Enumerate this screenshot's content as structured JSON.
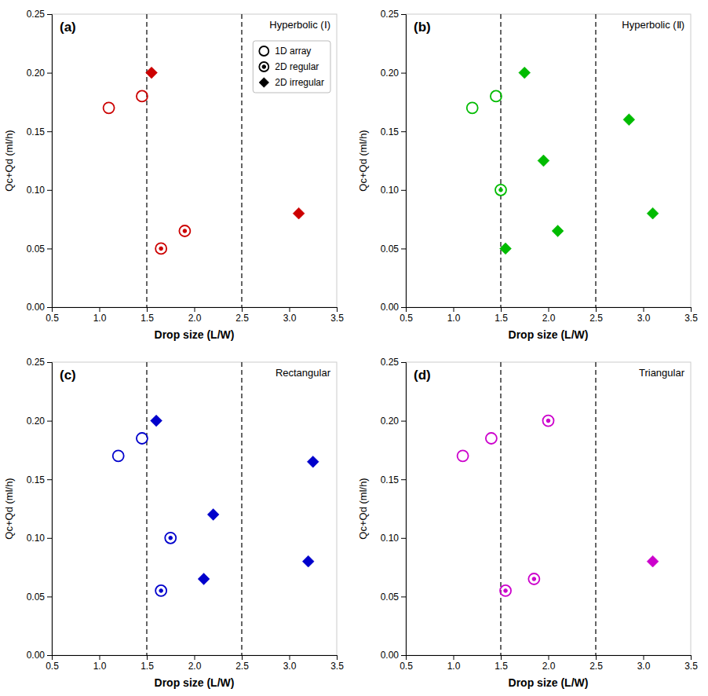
{
  "chart_data": [
    {
      "type": "scatter",
      "title": "Hyperbolic (Ⅰ)",
      "annotations": [
        "(a)"
      ],
      "xlabel": "Drop size (L/W)",
      "ylabel": "Qc+Qd (ml/h)",
      "xlim": [
        0.5,
        3.5
      ],
      "ylim": [
        0.0,
        0.25
      ],
      "xticks": [
        0.5,
        {
          "value": 1.0,
          "label": "1.0"
        },
        1.5,
        {
          "value": 2.0,
          "label": "2.0"
        },
        2.5,
        {
          "value": 3.0,
          "label": "3.0"
        },
        3.5
      ],
      "yticks": [
        {
          "value": 0.0,
          "label": "0.00"
        },
        0.05,
        {
          "value": 0.1,
          "label": "0.10"
        },
        0.15,
        {
          "value": 0.2,
          "label": "0.20"
        },
        0.25
      ],
      "grid": false,
      "legend": "upper right",
      "vlines": [
        1.5,
        2.5
      ],
      "series": [
        {
          "name": "1D array",
          "color": "#cc0000",
          "marker": "circle",
          "x": [
            1.1,
            1.45
          ],
          "values": [
            0.17,
            0.18
          ]
        },
        {
          "name": "2D regular",
          "color": "#cc0000",
          "marker": "circle-dot",
          "x": [
            1.65,
            1.9
          ],
          "values": [
            0.05,
            0.065
          ]
        },
        {
          "name": "2D irregular",
          "color": "#cc0000",
          "marker": "diamond",
          "x": [
            1.55,
            3.1
          ],
          "values": [
            0.2,
            0.08
          ]
        }
      ]
    },
    {
      "type": "scatter",
      "title": "Hyperbolic (Ⅱ)",
      "annotations": [
        "(b)"
      ],
      "xlabel": "Drop size (L/W)",
      "ylabel": "Qc+Qd (ml/h)",
      "xlim": [
        0.5,
        3.5
      ],
      "ylim": [
        0.0,
        0.25
      ],
      "xticks": [
        0.5,
        {
          "value": 1.0,
          "label": "1.0"
        },
        1.5,
        {
          "value": 2.0,
          "label": "2.0"
        },
        2.5,
        {
          "value": 3.0,
          "label": "3.0"
        },
        3.5
      ],
      "yticks": [
        {
          "value": 0.0,
          "label": "0.00"
        },
        0.05,
        {
          "value": 0.1,
          "label": "0.10"
        },
        0.15,
        {
          "value": 0.2,
          "label": "0.20"
        },
        0.25
      ],
      "grid": false,
      "vlines": [
        1.5,
        2.5
      ],
      "series": [
        {
          "color": "#00bb00",
          "marker": "circle",
          "x": [
            1.2,
            1.45
          ],
          "values": [
            0.17,
            0.18
          ]
        },
        {
          "color": "#00bb00",
          "marker": "circle-dot",
          "x": [
            1.5
          ],
          "values": [
            0.1
          ]
        },
        {
          "color": "#00bb00",
          "marker": "diamond",
          "x": [
            1.55,
            1.75,
            1.95,
            2.1,
            2.85,
            3.1
          ],
          "values": [
            0.05,
            0.2,
            0.125,
            0.065,
            0.16,
            0.08
          ]
        }
      ]
    },
    {
      "type": "scatter",
      "title": "Rectangular",
      "annotations": [
        "(c)"
      ],
      "xlabel": "Drop size (L/W)",
      "ylabel": "Qc+Qd (ml/h)",
      "xlim": [
        0.5,
        3.5
      ],
      "ylim": [
        0.0,
        0.25
      ],
      "xticks": [
        0.5,
        {
          "value": 1.0,
          "label": "1.0"
        },
        1.5,
        {
          "value": 2.0,
          "label": "2.0"
        },
        2.5,
        {
          "value": 3.0,
          "label": "3.0"
        },
        3.5
      ],
      "yticks": [
        {
          "value": 0.0,
          "label": "0.00"
        },
        0.05,
        {
          "value": 0.1,
          "label": "0.10"
        },
        0.15,
        {
          "value": 0.2,
          "label": "0.20"
        },
        0.25
      ],
      "grid": false,
      "vlines": [
        1.5,
        2.5
      ],
      "series": [
        {
          "color": "#0000cc",
          "marker": "circle",
          "x": [
            1.2,
            1.45
          ],
          "values": [
            0.17,
            0.185
          ]
        },
        {
          "color": "#0000cc",
          "marker": "circle-dot",
          "x": [
            1.65,
            1.75
          ],
          "values": [
            0.055,
            0.1
          ]
        },
        {
          "color": "#0000cc",
          "marker": "diamond",
          "x": [
            1.6,
            2.1,
            2.2,
            3.2,
            3.25
          ],
          "values": [
            0.2,
            0.065,
            0.12,
            0.08,
            0.165
          ]
        }
      ]
    },
    {
      "type": "scatter",
      "title": "Triangular",
      "annotations": [
        "(d)"
      ],
      "xlabel": "Drop size (L/W)",
      "ylabel": "Qc+Qd (ml/h)",
      "xlim": [
        0.5,
        3.5
      ],
      "ylim": [
        0.0,
        0.25
      ],
      "xticks": [
        0.5,
        {
          "value": 1.0,
          "label": "1.0"
        },
        1.5,
        {
          "value": 2.0,
          "label": "2.0"
        },
        2.5,
        {
          "value": 3.0,
          "label": "3.0"
        },
        3.5
      ],
      "yticks": [
        {
          "value": 0.0,
          "label": "0.00"
        },
        0.05,
        {
          "value": 0.1,
          "label": "0.10"
        },
        0.15,
        {
          "value": 0.2,
          "label": "0.20"
        },
        0.25
      ],
      "grid": false,
      "vlines": [
        1.5,
        2.5
      ],
      "series": [
        {
          "color": "#cc00cc",
          "marker": "circle",
          "x": [
            1.1,
            1.4
          ],
          "values": [
            0.17,
            0.185
          ]
        },
        {
          "color": "#cc00cc",
          "marker": "circle-dot",
          "x": [
            1.55,
            1.85,
            2.0
          ],
          "values": [
            0.055,
            0.065,
            0.2
          ]
        },
        {
          "color": "#cc00cc",
          "marker": "diamond",
          "x": [
            3.1
          ],
          "values": [
            0.08
          ]
        }
      ]
    }
  ]
}
